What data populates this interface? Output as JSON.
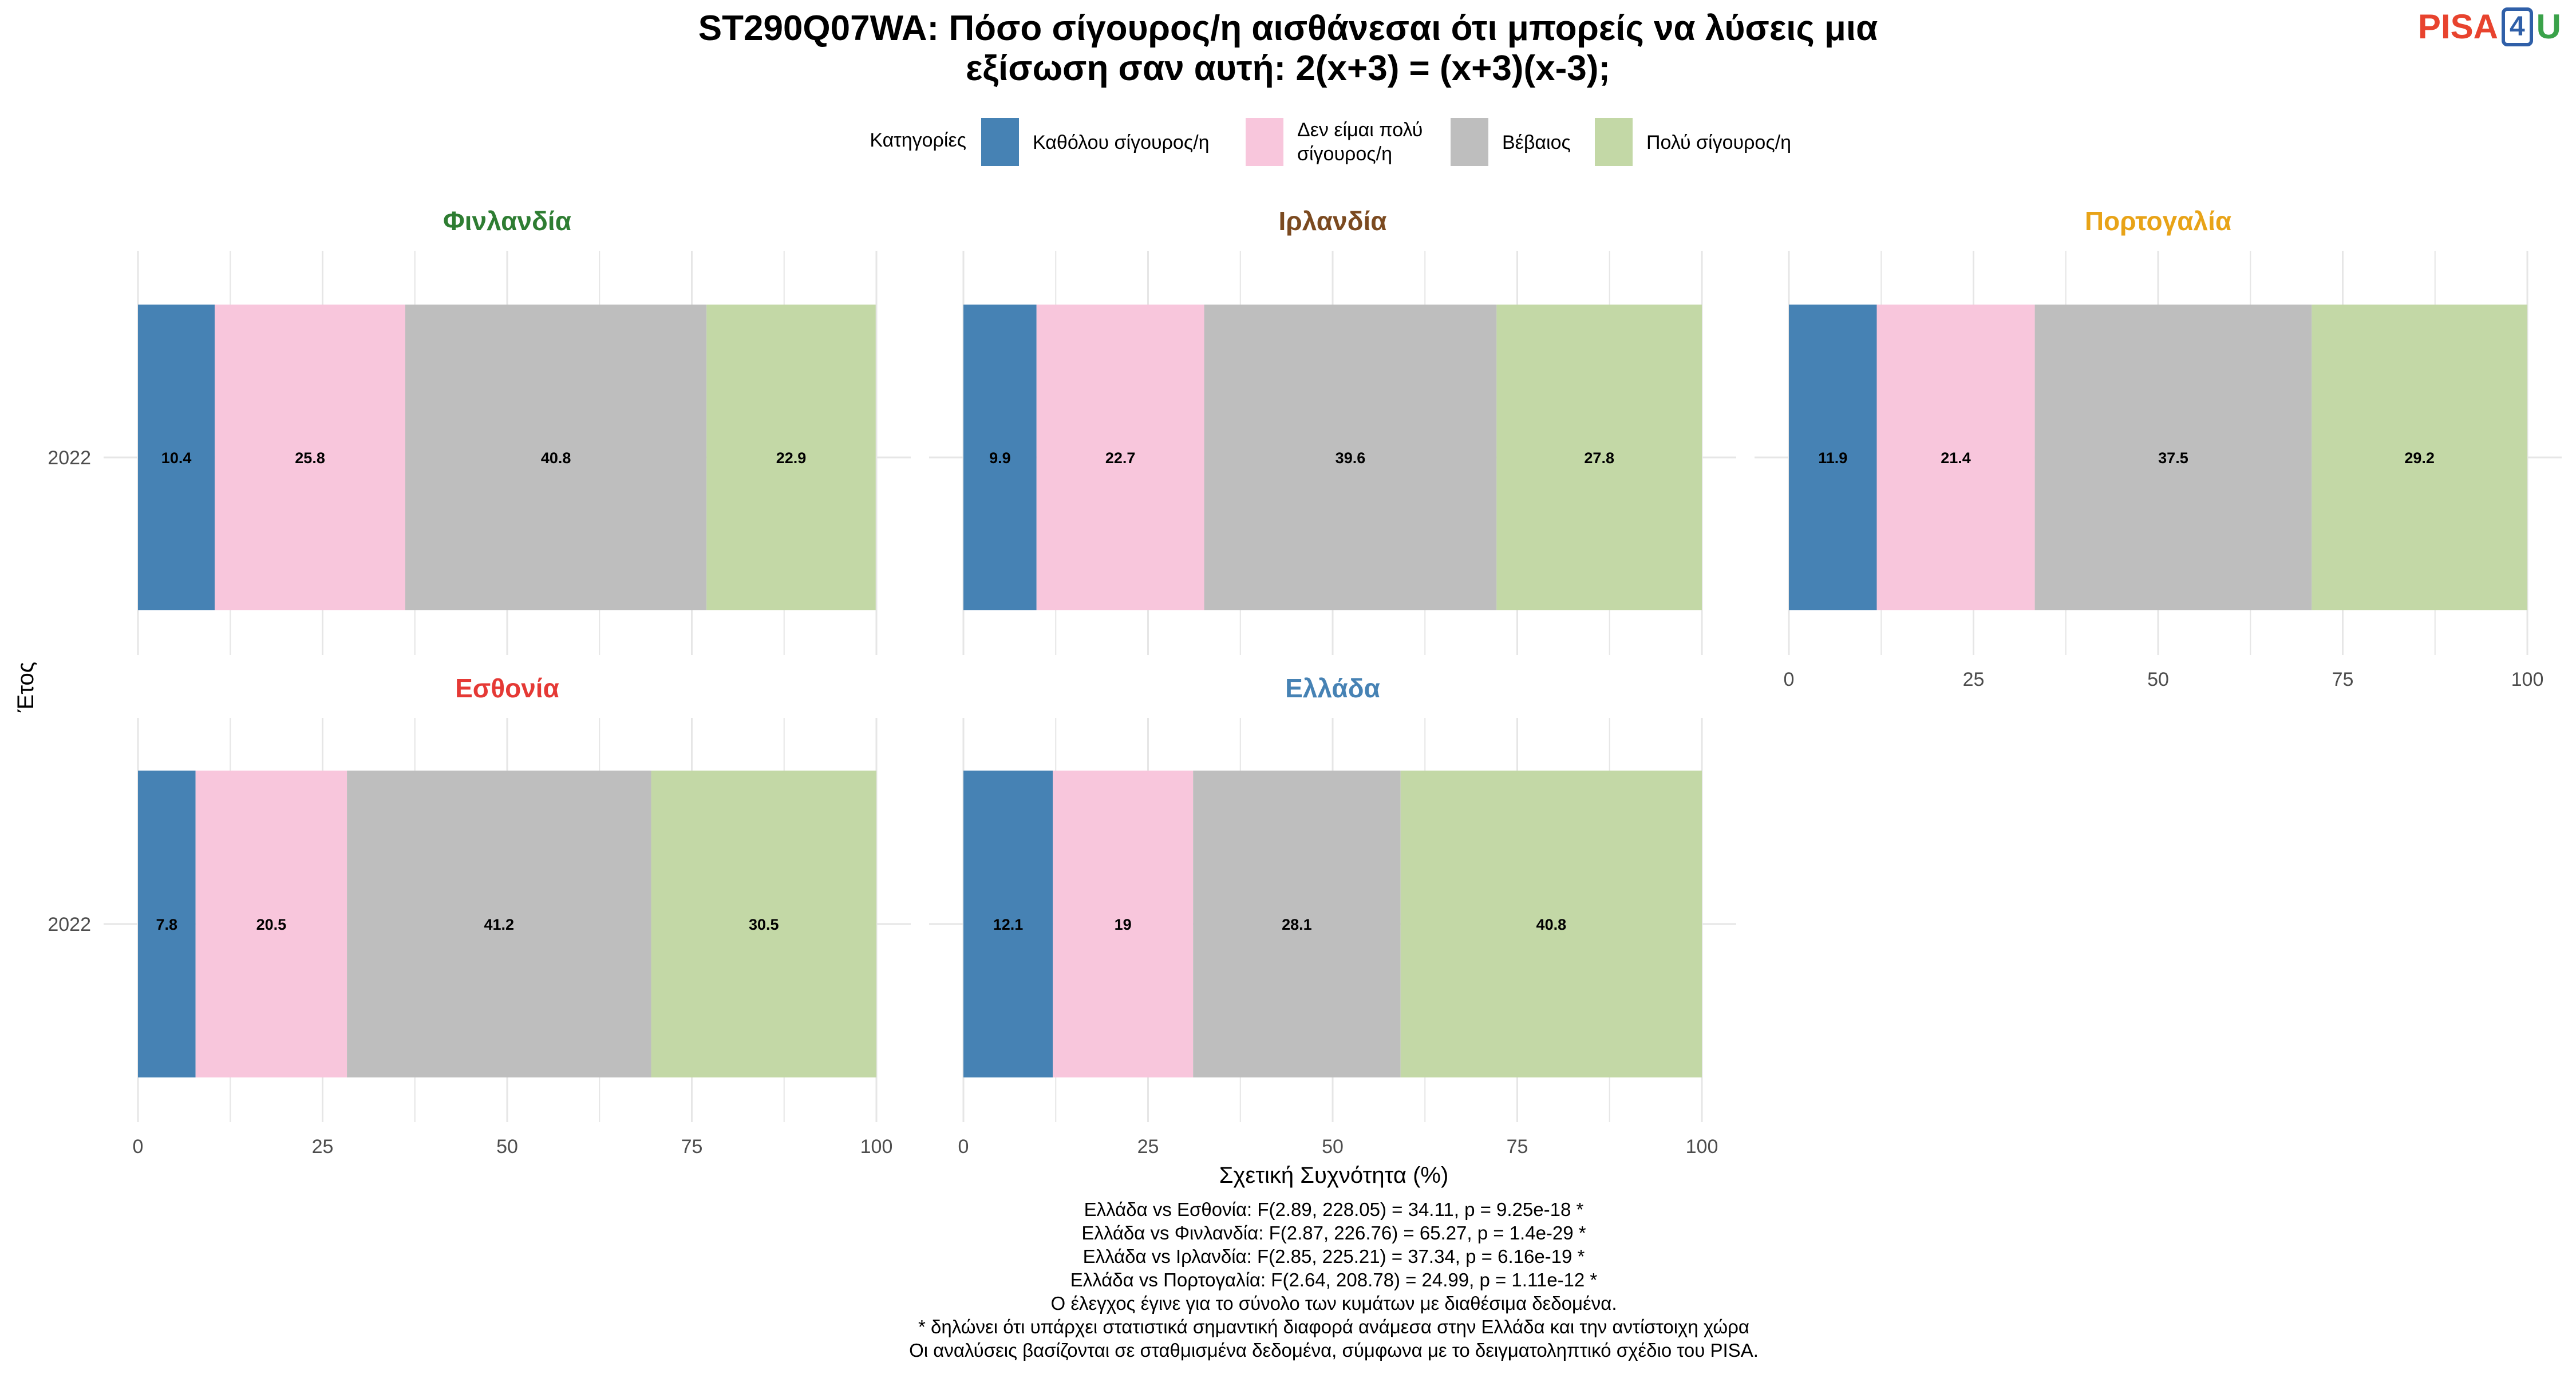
{
  "brand": {
    "part1": "PISA",
    "part2": "4",
    "part3": "U"
  },
  "chart_data": {
    "type": "bar",
    "orientation": "horizontal-stacked",
    "title_line1": "ST290Q07WA: Πόσο σίγουρος/η αισθάνεσαι ότι μπορείς να λύσεις μια",
    "title_line2": "εξίσωση σαν αυτή: 2(x+3) = (x+3)(x-3);",
    "legend_title": "Κατηγορίες",
    "legend_position": "top",
    "categories": [
      "Καθόλου σίγουρος/η",
      "Δεν είμαι πολύ σίγουρος/η",
      "Βέβαιος",
      "Πολύ σίγουρος/η"
    ],
    "category_colors": [
      "#4682b4",
      "#f8c6dc",
      "#bebebe",
      "#c3d8a6"
    ],
    "xlabel": "Σχετική Συχνότητα (%)",
    "ylabel": "Έτος",
    "xlim": [
      0,
      100
    ],
    "xticks": [
      0,
      25,
      50,
      75,
      100
    ],
    "grid": true,
    "panels": [
      {
        "country": "Φινλανδία",
        "color": "#2e7d32",
        "year": "2022",
        "values": [
          10.4,
          25.8,
          40.8,
          22.9
        ]
      },
      {
        "country": "Ιρλανδία",
        "color": "#7b4a20",
        "year": "2022",
        "values": [
          9.9,
          22.7,
          39.6,
          27.8
        ]
      },
      {
        "country": "Πορτογαλία",
        "color": "#e8a317",
        "year": "2022",
        "values": [
          11.9,
          21.4,
          37.5,
          29.2
        ]
      },
      {
        "country": "Εσθονία",
        "color": "#e53935",
        "year": "2022",
        "values": [
          7.8,
          20.5,
          41.2,
          30.5
        ]
      },
      {
        "country": "Ελλάδα",
        "color": "#4682b4",
        "year": "2022",
        "values": [
          12.1,
          19,
          28.1,
          40.8
        ]
      }
    ],
    "footnotes": [
      "Ελλάδα vs Εσθονία: F(2.89, 228.05) = 34.11, p = 9.25e-18 *",
      "Ελλάδα vs Φινλανδία: F(2.87, 226.76) = 65.27, p = 1.4e-29 *",
      "Ελλάδα vs Ιρλανδία: F(2.85, 225.21) = 37.34, p = 6.16e-19 *",
      "Ελλάδα vs Πορτογαλία: F(2.64, 208.78) = 24.99, p = 1.11e-12 *",
      "Ο έλεγχος έγινε για το σύνολο των κυμάτων με διαθέσιμα δεδομένα.",
      "* δηλώνει ότι υπάρχει στατιστικά σημαντική διαφορά ανάμεσα στην Ελλάδα και την αντίστοιχη χώρα",
      "Οι αναλύσεις βασίζονται σε σταθμισμένα δεδομένα, σύμφωνα με το δειγματοληπτικό σχέδιο του PISA."
    ]
  }
}
